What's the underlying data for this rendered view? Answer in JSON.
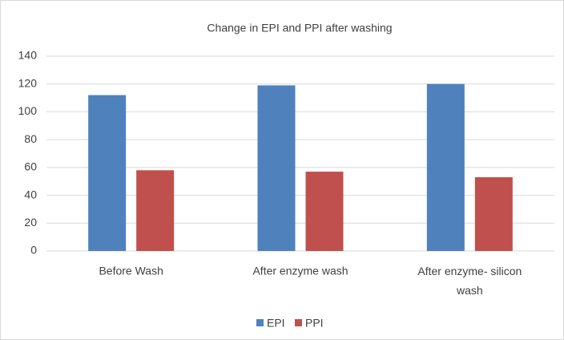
{
  "chart_data": {
    "type": "bar",
    "title": "Change in EPI and PPI after washing",
    "categories": [
      "Before Wash",
      "After enzyme wash",
      "After enzyme- silicon wash"
    ],
    "series": [
      {
        "name": "EPI",
        "color": "#4f81bd",
        "values": [
          112,
          119,
          120
        ]
      },
      {
        "name": "PPI",
        "color": "#c0504d",
        "values": [
          58,
          57,
          53
        ]
      }
    ],
    "ylim": [
      0,
      140
    ],
    "yticks": [
      0,
      20,
      40,
      60,
      80,
      100,
      120,
      140
    ],
    "grid": true,
    "legend": "bottom"
  }
}
